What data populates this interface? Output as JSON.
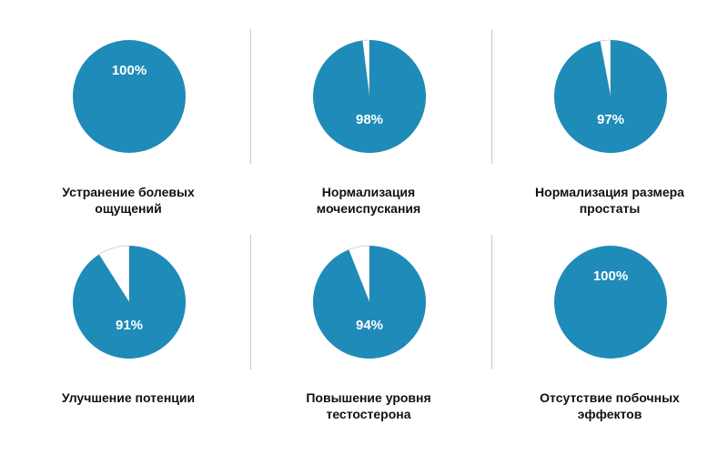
{
  "colors": {
    "pie_fill": "#1f8bb8",
    "pie_remainder": "#ffffff",
    "pie_border": "#c9c9c9",
    "label": "#ffffff",
    "caption": "#111111",
    "divider": "#c8c8c8"
  },
  "chart_data": [
    {
      "type": "pie",
      "value_label": "100%",
      "values": [
        100,
        0
      ],
      "caption": "Устранение болевых\nощущений"
    },
    {
      "type": "pie",
      "value_label": "98%",
      "values": [
        98,
        2
      ],
      "caption": "Нормализация\nмочеиспускания"
    },
    {
      "type": "pie",
      "value_label": "97%",
      "values": [
        97,
        3
      ],
      "caption": "Нормализация размера\nпростаты"
    },
    {
      "type": "pie",
      "value_label": "91%",
      "values": [
        91,
        9
      ],
      "caption": "Улучшение потенции"
    },
    {
      "type": "pie",
      "value_label": "94%",
      "values": [
        94,
        6
      ],
      "caption": "Повышение уровня\nтестостерона"
    },
    {
      "type": "pie",
      "value_label": "100%",
      "values": [
        100,
        0
      ],
      "caption": "Отсутствие побочных\nэффектов"
    }
  ]
}
